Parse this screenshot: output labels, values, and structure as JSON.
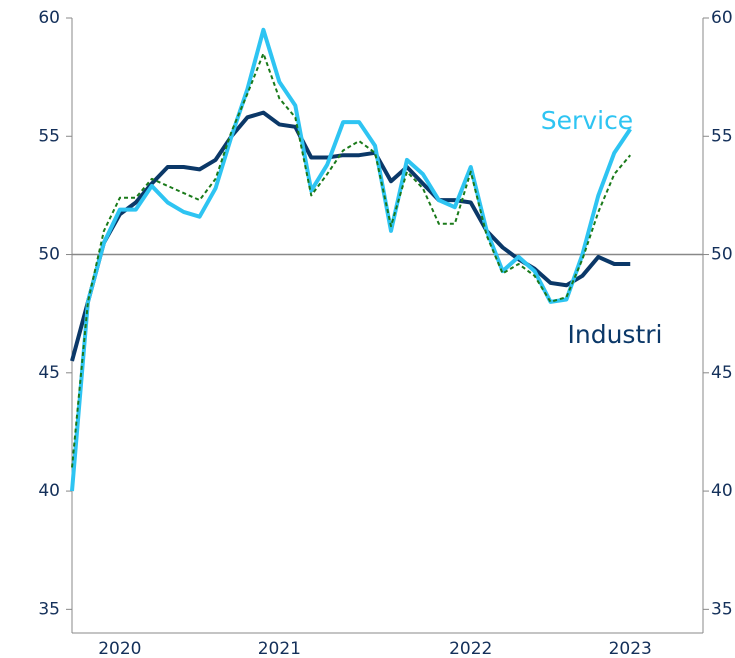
{
  "chart_data": {
    "type": "line",
    "categories": [
      null,
      null,
      null,
      "2020",
      null,
      null,
      null,
      null,
      null,
      null,
      null,
      null,
      null,
      "2021",
      null,
      null,
      null,
      null,
      null,
      null,
      null,
      null,
      null,
      null,
      null,
      "2022",
      null,
      null,
      null,
      null,
      null,
      null,
      null,
      null,
      null,
      "2023"
    ],
    "series": [
      {
        "name": "Industri",
        "color": "#0b3868",
        "width": 4,
        "values": [
          45.5,
          48,
          50.5,
          51.7,
          52.2,
          53,
          53.7,
          53.7,
          53.6,
          54,
          55,
          55.8,
          56,
          55.5,
          55.4,
          54.1,
          54.1,
          54.2,
          54.2,
          54.3,
          53.1,
          53.7,
          53,
          52.3,
          52.3,
          52.2,
          51,
          50.3,
          49.8,
          49.4,
          48.8,
          48.7,
          49.1,
          49.9,
          49.6,
          49.6
        ]
      },
      {
        "name": "Service",
        "color": "#2ec4f2",
        "width": 4,
        "values": [
          40,
          48,
          50.5,
          51.9,
          51.9,
          52.9,
          52.2,
          51.8,
          51.6,
          52.8,
          55,
          57,
          59.5,
          57.3,
          56.3,
          52.7,
          53.8,
          55.6,
          55.6,
          54.6,
          51,
          54,
          53.4,
          52.3,
          52,
          53.7,
          51,
          49.3,
          49.9,
          49.3,
          48,
          48.1,
          50,
          52.5,
          54.3,
          55.3
        ]
      },
      {
        "color": "#1a7a1a",
        "dashed": true,
        "width": 2,
        "values": [
          41,
          48,
          51,
          52.4,
          52.4,
          53.2,
          52.9,
          52.6,
          52.3,
          53.2,
          55.2,
          56.8,
          58.5,
          56.6,
          55.8,
          52.5,
          53.4,
          54.4,
          54.8,
          54.3,
          51.2,
          53.5,
          52.8,
          51.3,
          51.3,
          53.5,
          50.8,
          49.2,
          49.6,
          49.1,
          48,
          48.2,
          49.8,
          51.8,
          53.4,
          54.2
        ]
      }
    ],
    "reference_line": 50,
    "ylim": [
      34,
      60
    ],
    "yticks": [
      35,
      40,
      45,
      50,
      55,
      60
    ],
    "y2lim": [
      34,
      60
    ],
    "y2ticks": [
      35,
      40,
      45,
      50,
      55,
      60
    ]
  }
}
